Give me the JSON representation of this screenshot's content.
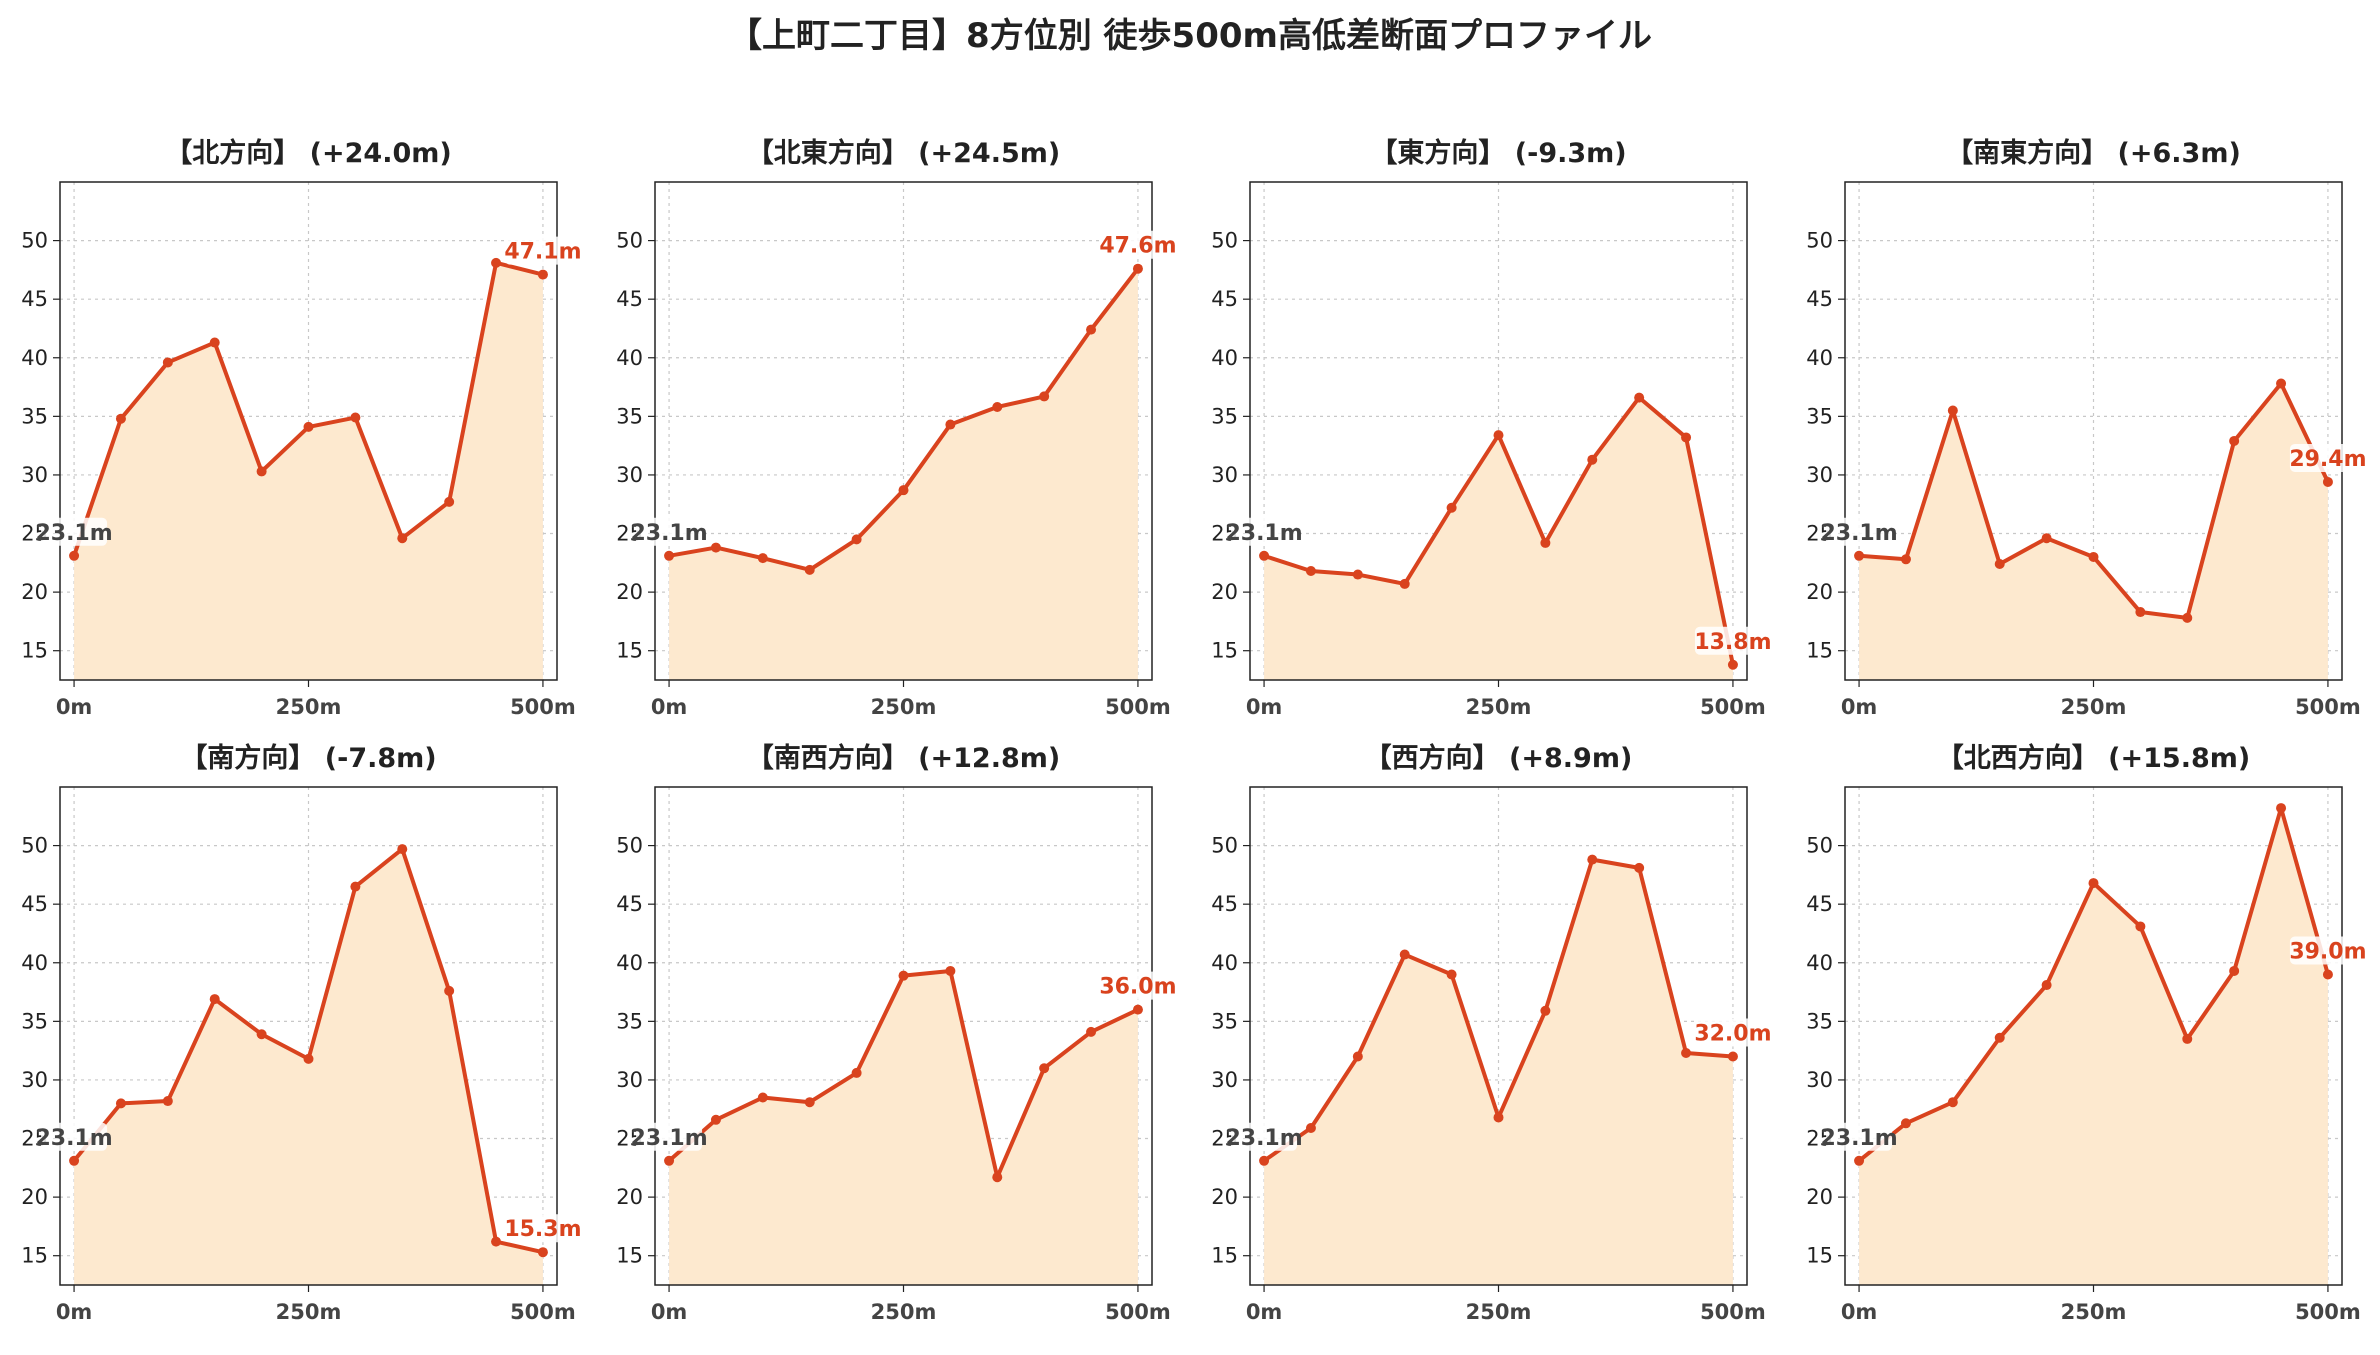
{
  "suptitle": "【上町二丁目】8方位別 徒歩500m高低差断面プロファイル",
  "colors": {
    "line": "#d9431e",
    "fill": "#fde9cf",
    "start_label": "#444444",
    "end_label": "#d9431e",
    "grid": "#c8c8c8"
  },
  "chart_data": [
    {
      "type": "area",
      "title": "【北方向】 (+24.0m)",
      "x": [
        0,
        50,
        100,
        150,
        200,
        250,
        300,
        350,
        400,
        450,
        500
      ],
      "y": [
        23.1,
        34.8,
        39.6,
        41.3,
        30.3,
        34.1,
        34.9,
        24.6,
        27.7,
        48.1,
        47.1
      ],
      "xticks": [
        "0m",
        "250m",
        "500m"
      ],
      "yticks": [
        15,
        20,
        25,
        30,
        35,
        40,
        45,
        50
      ],
      "ylim": [
        12.5,
        55
      ],
      "start_label": "23.1m",
      "end_label": "47.1m",
      "grid": true
    },
    {
      "type": "area",
      "title": "【北東方向】 (+24.5m)",
      "x": [
        0,
        50,
        100,
        150,
        200,
        250,
        300,
        350,
        400,
        450,
        500
      ],
      "y": [
        23.1,
        23.8,
        22.9,
        21.9,
        24.5,
        28.7,
        34.3,
        35.8,
        36.7,
        42.4,
        47.6
      ],
      "xticks": [
        "0m",
        "250m",
        "500m"
      ],
      "yticks": [
        15,
        20,
        25,
        30,
        35,
        40,
        45,
        50
      ],
      "ylim": [
        12.5,
        55
      ],
      "start_label": "23.1m",
      "end_label": "47.6m",
      "grid": true
    },
    {
      "type": "area",
      "title": "【東方向】 (-9.3m)",
      "x": [
        0,
        50,
        100,
        150,
        200,
        250,
        300,
        350,
        400,
        450,
        500
      ],
      "y": [
        23.1,
        21.8,
        21.5,
        20.7,
        27.2,
        33.4,
        24.2,
        31.3,
        36.6,
        33.2,
        13.8
      ],
      "xticks": [
        "0m",
        "250m",
        "500m"
      ],
      "yticks": [
        15,
        20,
        25,
        30,
        35,
        40,
        45,
        50
      ],
      "ylim": [
        12.5,
        55
      ],
      "start_label": "23.1m",
      "end_label": "13.8m",
      "grid": true
    },
    {
      "type": "area",
      "title": "【南東方向】 (+6.3m)",
      "x": [
        0,
        50,
        100,
        150,
        200,
        250,
        300,
        350,
        400,
        450,
        500
      ],
      "y": [
        23.1,
        22.8,
        35.5,
        22.4,
        24.6,
        23.0,
        18.3,
        17.8,
        32.9,
        37.8,
        29.4
      ],
      "xticks": [
        "0m",
        "250m",
        "500m"
      ],
      "yticks": [
        15,
        20,
        25,
        30,
        35,
        40,
        45,
        50
      ],
      "ylim": [
        12.5,
        55
      ],
      "start_label": "23.1m",
      "end_label": "29.4m",
      "grid": true
    },
    {
      "type": "area",
      "title": "【南方向】 (-7.8m)",
      "x": [
        0,
        50,
        100,
        150,
        200,
        250,
        300,
        350,
        400,
        450,
        500
      ],
      "y": [
        23.1,
        28.0,
        28.2,
        36.9,
        33.9,
        31.8,
        46.5,
        49.7,
        37.6,
        16.2,
        15.3
      ],
      "xticks": [
        "0m",
        "250m",
        "500m"
      ],
      "yticks": [
        15,
        20,
        25,
        30,
        35,
        40,
        45,
        50
      ],
      "ylim": [
        12.5,
        55
      ],
      "start_label": "23.1m",
      "end_label": "15.3m",
      "grid": true
    },
    {
      "type": "area",
      "title": "【南西方向】 (+12.8m)",
      "x": [
        0,
        50,
        100,
        150,
        200,
        250,
        300,
        350,
        400,
        450,
        500
      ],
      "y": [
        23.1,
        26.6,
        28.5,
        28.1,
        30.6,
        38.9,
        39.3,
        21.7,
        31.0,
        34.1,
        36.0
      ],
      "xticks": [
        "0m",
        "250m",
        "500m"
      ],
      "yticks": [
        15,
        20,
        25,
        30,
        35,
        40,
        45,
        50
      ],
      "ylim": [
        12.5,
        55
      ],
      "start_label": "23.1m",
      "end_label": "36.0m",
      "grid": true
    },
    {
      "type": "area",
      "title": "【西方向】 (+8.9m)",
      "x": [
        0,
        50,
        100,
        150,
        200,
        250,
        300,
        350,
        400,
        450,
        500
      ],
      "y": [
        23.1,
        25.9,
        32.0,
        40.7,
        39.0,
        26.8,
        35.9,
        48.8,
        48.1,
        32.3,
        32.0
      ],
      "xticks": [
        "0m",
        "250m",
        "500m"
      ],
      "yticks": [
        15,
        20,
        25,
        30,
        35,
        40,
        45,
        50
      ],
      "ylim": [
        12.5,
        55
      ],
      "start_label": "23.1m",
      "end_label": "32.0m",
      "grid": true
    },
    {
      "type": "area",
      "title": "【北西方向】 (+15.8m)",
      "x": [
        0,
        50,
        100,
        150,
        200,
        250,
        300,
        350,
        400,
        450,
        500
      ],
      "y": [
        23.1,
        26.3,
        28.1,
        33.6,
        38.1,
        46.8,
        43.1,
        33.5,
        39.3,
        53.2,
        39.0
      ],
      "xticks": [
        "0m",
        "250m",
        "500m"
      ],
      "yticks": [
        15,
        20,
        25,
        30,
        35,
        40,
        45,
        50
      ],
      "ylim": [
        12.5,
        55
      ],
      "start_label": "23.1m",
      "end_label": "39.0m",
      "grid": true
    }
  ]
}
